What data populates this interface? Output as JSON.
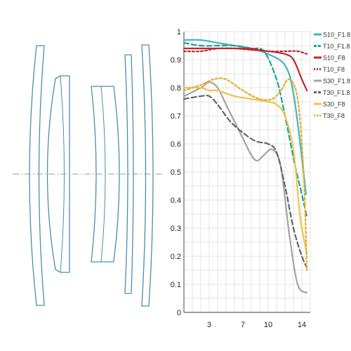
{
  "chart_data": {
    "type": "line",
    "title": "",
    "xlabel": "",
    "ylabel": "",
    "xlim": [
      0,
      15
    ],
    "ylim": [
      0,
      1
    ],
    "x_ticks": [
      {
        "label": "3",
        "value": 3
      },
      {
        "label": "7",
        "value": 7
      },
      {
        "label": "10",
        "value": 10
      },
      {
        "label": "14",
        "value": 14
      }
    ],
    "y_ticks": [
      {
        "label": "0",
        "value": 0
      },
      {
        "label": "0.1",
        "value": 0.1
      },
      {
        "label": "0.2",
        "value": 0.2
      },
      {
        "label": "0.3",
        "value": 0.3
      },
      {
        "label": "0.4",
        "value": 0.4
      },
      {
        "label": "0.5",
        "value": 0.5
      },
      {
        "label": "0.6",
        "value": 0.6
      },
      {
        "label": "0.7",
        "value": 0.7
      },
      {
        "label": "0.8",
        "value": 0.8
      },
      {
        "label": "0.9",
        "value": 0.9
      },
      {
        "label": "1",
        "value": 1
      }
    ],
    "grid": true,
    "legend_position": "right",
    "series": [
      {
        "name": "S10_F1.8",
        "color": "#3fb6c2",
        "dash": "solid",
        "points": [
          [
            0,
            0.97
          ],
          [
            2,
            0.97
          ],
          [
            4,
            0.96
          ],
          [
            6,
            0.95
          ],
          [
            8,
            0.94
          ],
          [
            10,
            0.92
          ],
          [
            12,
            0.88
          ],
          [
            13,
            0.78
          ],
          [
            14,
            0.55
          ],
          [
            14.5,
            0.42
          ]
        ]
      },
      {
        "name": "T10_F1.8",
        "color": "#1aa59a",
        "dash": "dashed",
        "points": [
          [
            0,
            0.96
          ],
          [
            2,
            0.95
          ],
          [
            4,
            0.95
          ],
          [
            6,
            0.95
          ],
          [
            8,
            0.94
          ],
          [
            9.5,
            0.93
          ],
          [
            11,
            0.83
          ],
          [
            12,
            0.7
          ],
          [
            13,
            0.55
          ],
          [
            14,
            0.42
          ],
          [
            14.6,
            0.34
          ]
        ]
      },
      {
        "name": "S10_F8",
        "color": "#c0272d",
        "dash": "solid",
        "points": [
          [
            0,
            0.94
          ],
          [
            2,
            0.94
          ],
          [
            4,
            0.94
          ],
          [
            6,
            0.94
          ],
          [
            8,
            0.935
          ],
          [
            10,
            0.93
          ],
          [
            12,
            0.92
          ],
          [
            13,
            0.9
          ],
          [
            14,
            0.83
          ],
          [
            14.6,
            0.79
          ]
        ]
      },
      {
        "name": "T10_F8",
        "color": "#c0272d",
        "dash": "dotted",
        "points": [
          [
            0,
            0.93
          ],
          [
            2,
            0.93
          ],
          [
            4,
            0.94
          ],
          [
            6,
            0.94
          ],
          [
            8,
            0.94
          ],
          [
            10,
            0.93
          ],
          [
            12,
            0.93
          ],
          [
            13.5,
            0.93
          ],
          [
            14.6,
            0.92
          ]
        ]
      },
      {
        "name": "S30_F1.8",
        "color": "#a3a3a3",
        "dash": "solid",
        "points": [
          [
            0,
            0.77
          ],
          [
            2,
            0.8
          ],
          [
            3,
            0.82
          ],
          [
            4,
            0.8
          ],
          [
            5,
            0.74
          ],
          [
            6,
            0.68
          ],
          [
            7,
            0.62
          ],
          [
            8,
            0.56
          ],
          [
            8.7,
            0.54
          ],
          [
            9.5,
            0.56
          ],
          [
            10.5,
            0.58
          ],
          [
            11.5,
            0.52
          ],
          [
            12.5,
            0.28
          ],
          [
            13.5,
            0.1
          ],
          [
            14.6,
            0.07
          ]
        ]
      },
      {
        "name": "T30_F1.8",
        "color": "#666666",
        "dash": "dashed",
        "points": [
          [
            0,
            0.76
          ],
          [
            2,
            0.77
          ],
          [
            3,
            0.77
          ],
          [
            4,
            0.74
          ],
          [
            5.5,
            0.68
          ],
          [
            7,
            0.64
          ],
          [
            8.5,
            0.61
          ],
          [
            10,
            0.6
          ],
          [
            11,
            0.57
          ],
          [
            12,
            0.45
          ],
          [
            13,
            0.3
          ],
          [
            14,
            0.2
          ],
          [
            14.6,
            0.16
          ]
        ]
      },
      {
        "name": "S30_F8",
        "color": "#f0c24b",
        "dash": "solid",
        "points": [
          [
            0,
            0.8
          ],
          [
            2,
            0.8
          ],
          [
            3,
            0.79
          ],
          [
            4,
            0.79
          ],
          [
            6,
            0.77
          ],
          [
            8,
            0.76
          ],
          [
            10,
            0.75
          ],
          [
            11,
            0.74
          ],
          [
            12,
            0.7
          ],
          [
            13,
            0.58
          ],
          [
            13.8,
            0.34
          ],
          [
            14.6,
            0.21
          ]
        ]
      },
      {
        "name": "T30_F8",
        "color": "#e8a929",
        "dash": "dotted",
        "points": [
          [
            0,
            0.79
          ],
          [
            2,
            0.81
          ],
          [
            3.5,
            0.83
          ],
          [
            5,
            0.83
          ],
          [
            7,
            0.79
          ],
          [
            9,
            0.76
          ],
          [
            10.5,
            0.76
          ],
          [
            11.5,
            0.79
          ],
          [
            12.5,
            0.83
          ],
          [
            13.5,
            0.76
          ],
          [
            14.2,
            0.5
          ],
          [
            14.6,
            0.15
          ]
        ]
      }
    ]
  },
  "diagram": {
    "elements": [
      "meniscus-lens-1",
      "lens-group-left",
      "lens-group-right",
      "meniscus-lens-2",
      "meniscus-lens-3"
    ],
    "stroke_color": "#4a8fa8"
  }
}
